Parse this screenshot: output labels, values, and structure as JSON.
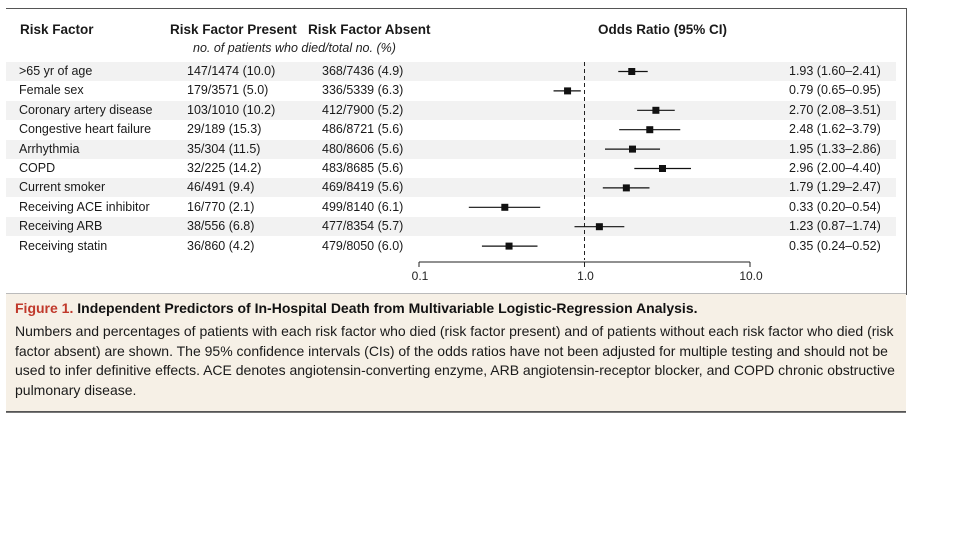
{
  "headers": {
    "risk_factor": "Risk Factor",
    "present": "Risk Factor Present",
    "absent": "Risk Factor Absent",
    "odds_ratio": "Odds Ratio (95% CI)",
    "sub": "no. of patients who died/total no. (%)"
  },
  "rows": [
    {
      "name": ">65 yr of age",
      "present": "147/1474 (10.0)",
      "absent": "368/7436 (4.9)",
      "or_text": "1.93 (1.60–2.41)"
    },
    {
      "name": "Female sex",
      "present": "179/3571 (5.0)",
      "absent": "336/5339 (6.3)",
      "or_text": "0.79 (0.65–0.95)"
    },
    {
      "name": "Coronary artery disease",
      "present": "103/1010 (10.2)",
      "absent": "412/7900 (5.2)",
      "or_text": "2.70 (2.08–3.51)"
    },
    {
      "name": "Congestive heart failure",
      "present": "29/189 (15.3)",
      "absent": "486/8721 (5.6)",
      "or_text": "2.48 (1.62–3.79)"
    },
    {
      "name": "Arrhythmia",
      "present": "35/304 (11.5)",
      "absent": "480/8606 (5.6)",
      "or_text": "1.95 (1.33–2.86)"
    },
    {
      "name": "COPD",
      "present": "32/225 (14.2)",
      "absent": "483/8685 (5.6)",
      "or_text": "2.96 (2.00–4.40)"
    },
    {
      "name": "Current smoker",
      "present": "46/491 (9.4)",
      "absent": "469/8419 (5.6)",
      "or_text": "1.79 (1.29–2.47)"
    },
    {
      "name": "Receiving ACE inhibitor",
      "present": "16/770 (2.1)",
      "absent": "499/8140 (6.1)",
      "or_text": "0.33 (0.20–0.54)"
    },
    {
      "name": "Receiving ARB",
      "present": "38/556 (6.8)",
      "absent": "477/8354 (5.7)",
      "or_text": "1.23 (0.87–1.74)"
    },
    {
      "name": "Receiving statin",
      "present": "36/860 (4.2)",
      "absent": "479/8050 (6.0)",
      "or_text": "0.35 (0.24–0.52)"
    }
  ],
  "caption": {
    "label": "Figure 1.",
    "title": "Independent Predictors of In-Hospital Death from Multivariable Logistic-Regression Analysis.",
    "body": "Numbers and percentages of patients with each risk factor who died (risk factor present) and of patients without each risk factor who died (risk factor absent) are shown. The 95% confidence intervals (CIs) of the odds ratios have not been adjusted for multiple testing and should not be used to infer definitive effects. ACE denotes angiotensin-converting enzyme, ARB angiotensin-receptor blocker, and COPD chronic obstructive pulmonary disease."
  },
  "chart_data": {
    "type": "scatter",
    "title": "Odds Ratio (95% CI)",
    "xscale": "log",
    "xlim": [
      0.1,
      10.0
    ],
    "xticks": [
      "0.1",
      "1.0",
      "10.0"
    ],
    "reference_line": 1.0,
    "categories": [
      ">65 yr of age",
      "Female sex",
      "Coronary artery disease",
      "Congestive heart failure",
      "Arrhythmia",
      "COPD",
      "Current smoker",
      "Receiving ACE inhibitor",
      "Receiving ARB",
      "Receiving statin"
    ],
    "or": [
      1.93,
      0.79,
      2.7,
      2.48,
      1.95,
      2.96,
      1.79,
      0.33,
      1.23,
      0.35
    ],
    "low": [
      1.6,
      0.65,
      2.08,
      1.62,
      1.33,
      2.0,
      1.29,
      0.2,
      0.87,
      0.24
    ],
    "high": [
      2.41,
      0.95,
      3.51,
      3.79,
      2.86,
      4.4,
      2.47,
      0.54,
      1.74,
      0.52
    ]
  }
}
